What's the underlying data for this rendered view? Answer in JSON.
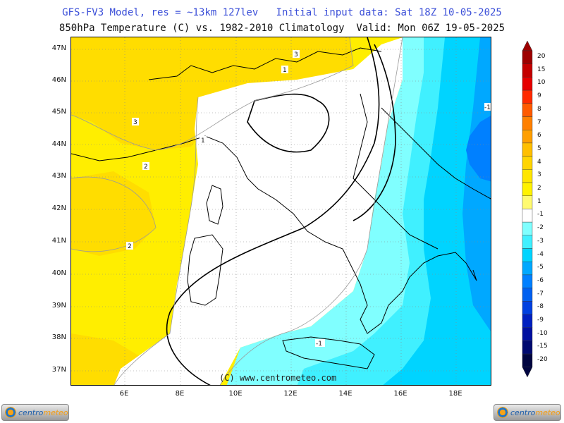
{
  "header": {
    "title_line1": "GFS-FV3 Model, res = ~13km 127lev   Initial input data: Sat 18Z 10-05-2025",
    "title_line2": "850hPa Temperature (C) vs. 1982-2010 Climatology  Valid: Mon 06Z 19-05-2025"
  },
  "map": {
    "copyright": "(C) www.centrometeo.com",
    "lat_labels": [
      "47N",
      "46N",
      "45N",
      "44N",
      "43N",
      "42N",
      "41N",
      "40N",
      "39N",
      "38N",
      "37N"
    ],
    "lon_labels": [
      "6E",
      "8E",
      "10E",
      "12E",
      "14E",
      "16E",
      "18E"
    ],
    "contour_labels": [
      "3",
      "1",
      "3",
      "1",
      "2",
      "2",
      "-1",
      "-1"
    ]
  },
  "colorbar": {
    "labels": [
      "20",
      "15",
      "10",
      "9",
      "8",
      "7",
      "6",
      "5",
      "4",
      "3",
      "2",
      "1",
      "-1",
      "-2",
      "-3",
      "-4",
      "-5",
      "-6",
      "-7",
      "-8",
      "-9",
      "-10",
      "-15",
      "-20"
    ],
    "colors": [
      "#9e0000",
      "#c40000",
      "#e60000",
      "#ff2a00",
      "#ff5a00",
      "#ff8000",
      "#ff9f00",
      "#ffbf00",
      "#ffd500",
      "#ffe600",
      "#fff200",
      "#fffa70",
      "#ffffff",
      "#80ffff",
      "#40f0ff",
      "#00d4ff",
      "#00a8ff",
      "#0080ff",
      "#0060f0",
      "#0040e0",
      "#0020c0",
      "#0010a0",
      "#000a70",
      "#000540"
    ]
  },
  "field_colors": {
    "warm_1_2": "#ffee00",
    "warm_2_3": "#ffdd00",
    "neutral": "#ffffff",
    "cold_1_2": "#80ffff",
    "cold_2_3": "#40f0ff",
    "cold_3_4": "#00d4ff",
    "cold_4_5": "#00a8ff",
    "cold_5_6": "#0080ff"
  },
  "logos": {
    "left_text_a": "centro",
    "left_text_b": "meteo",
    "right_text_a": "centro",
    "right_text_b": "meteo"
  }
}
